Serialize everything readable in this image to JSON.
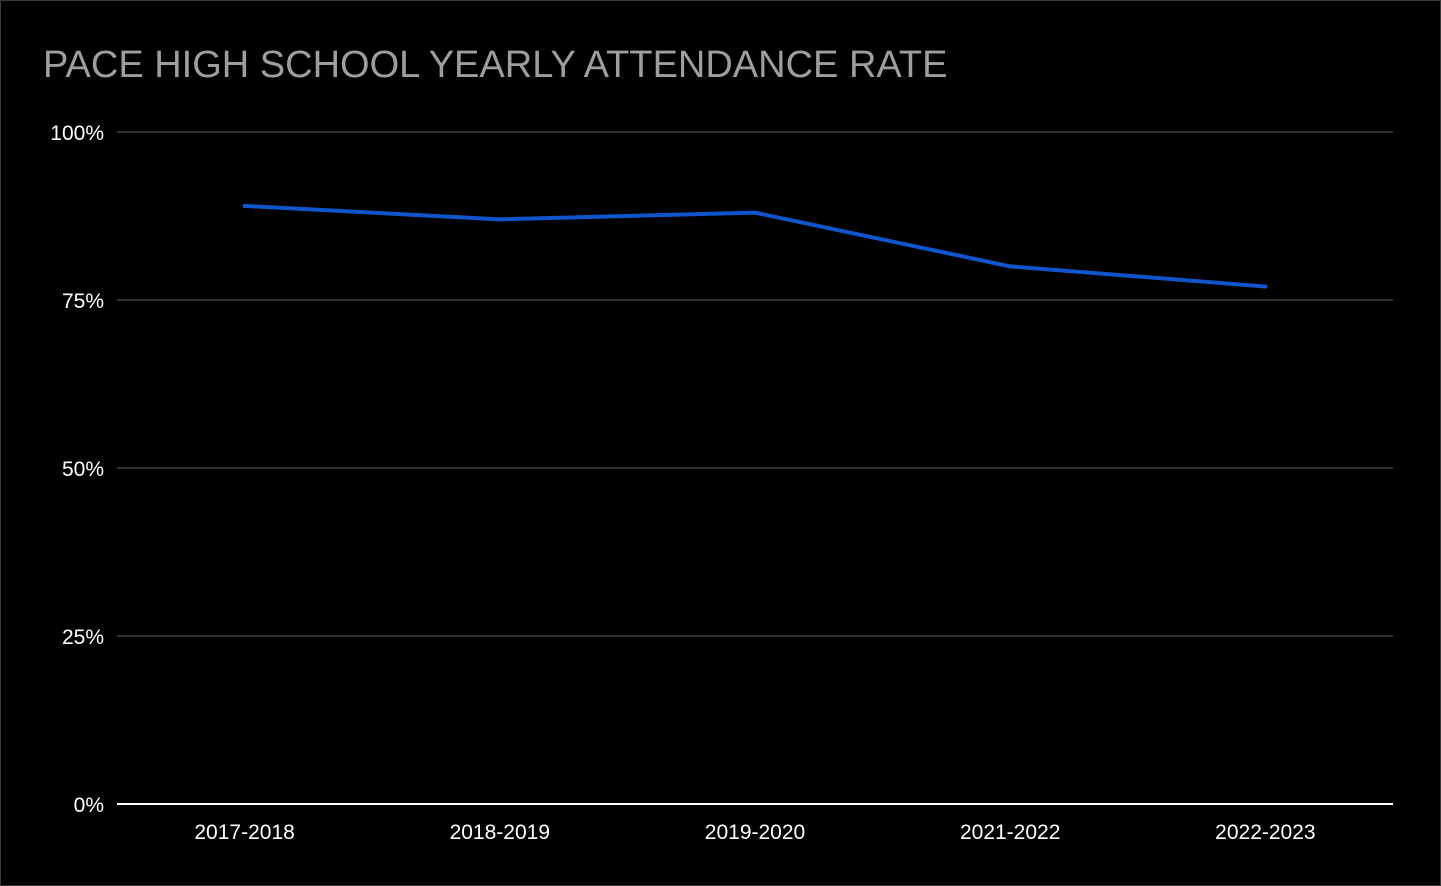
{
  "chart_data": {
    "type": "line",
    "title": "PACE HIGH SCHOOL YEARLY ATTENDANCE RATE",
    "xlabel": "",
    "ylabel": "",
    "categories": [
      "2017-2018",
      "2018-2019",
      "2019-2020",
      "2021-2022",
      "2022-2023"
    ],
    "series": [
      {
        "values": [
          89,
          87,
          88,
          80,
          77
        ]
      }
    ],
    "ylim": [
      0,
      100
    ],
    "yticks": [
      0,
      25,
      50,
      75,
      100
    ],
    "ytick_labels": [
      "0%",
      "25%",
      "50%",
      "75%",
      "100%"
    ],
    "grid": true,
    "legend": "none",
    "colors": {
      "background": "#000000",
      "line": "#1155cc",
      "grid": "#3f3f3f",
      "axis": "#ffffff",
      "title": "#9e9e9e",
      "tick_label": "#ffffff"
    }
  }
}
